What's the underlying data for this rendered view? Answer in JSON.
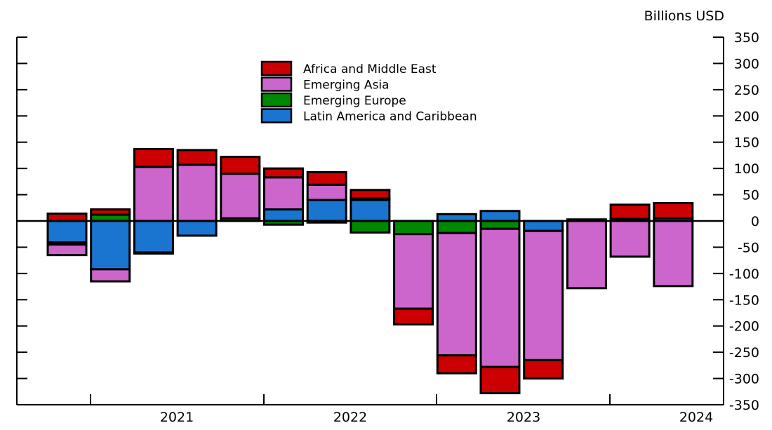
{
  "chart_data": {
    "type": "bar",
    "stacked": true,
    "unit_label": "Billions USD",
    "ylim": [
      -350,
      350
    ],
    "yticks": [
      350,
      300,
      250,
      200,
      150,
      100,
      50,
      0,
      -50,
      -100,
      -150,
      -200,
      -250,
      -300,
      -350
    ],
    "year_labels": [
      "2021",
      "2022",
      "2023",
      "2024"
    ],
    "categories": [
      "2020Q4",
      "2021Q1",
      "2021Q2",
      "2021Q3",
      "2021Q4",
      "2022Q1",
      "2022Q2",
      "2022Q3",
      "2022Q4",
      "2023Q1",
      "2023Q2",
      "2023Q3",
      "2023Q4",
      "2024Q1",
      "2024Q2"
    ],
    "legend_placement": "top-center",
    "series": [
      {
        "name": "Latin America and Caribbean",
        "color": "#1a75d0",
        "values": [
          -41,
          -92,
          -60,
          -28,
          0,
          22,
          40,
          40,
          0,
          13,
          19,
          -19,
          0,
          4,
          5
        ]
      },
      {
        "name": "Emerging Europe",
        "color": "#008800",
        "values": [
          -4,
          12,
          -2,
          0,
          5,
          -7,
          -3,
          -22,
          -25,
          -23,
          -15,
          0,
          0,
          0,
          0
        ]
      },
      {
        "name": "Emerging Asia",
        "color": "#cc66cc",
        "values": [
          -20,
          -23,
          103,
          107,
          85,
          61,
          29,
          3,
          -142,
          -233,
          -263,
          -246,
          -128,
          -68,
          -124
        ]
      },
      {
        "name": "Africa and Middle East",
        "color": "#cc0000",
        "values": [
          14,
          10,
          34,
          28,
          32,
          17,
          24,
          16,
          -30,
          -34,
          -50,
          -35,
          3,
          27,
          29
        ]
      }
    ],
    "legend_order": [
      3,
      2,
      1,
      0
    ]
  }
}
